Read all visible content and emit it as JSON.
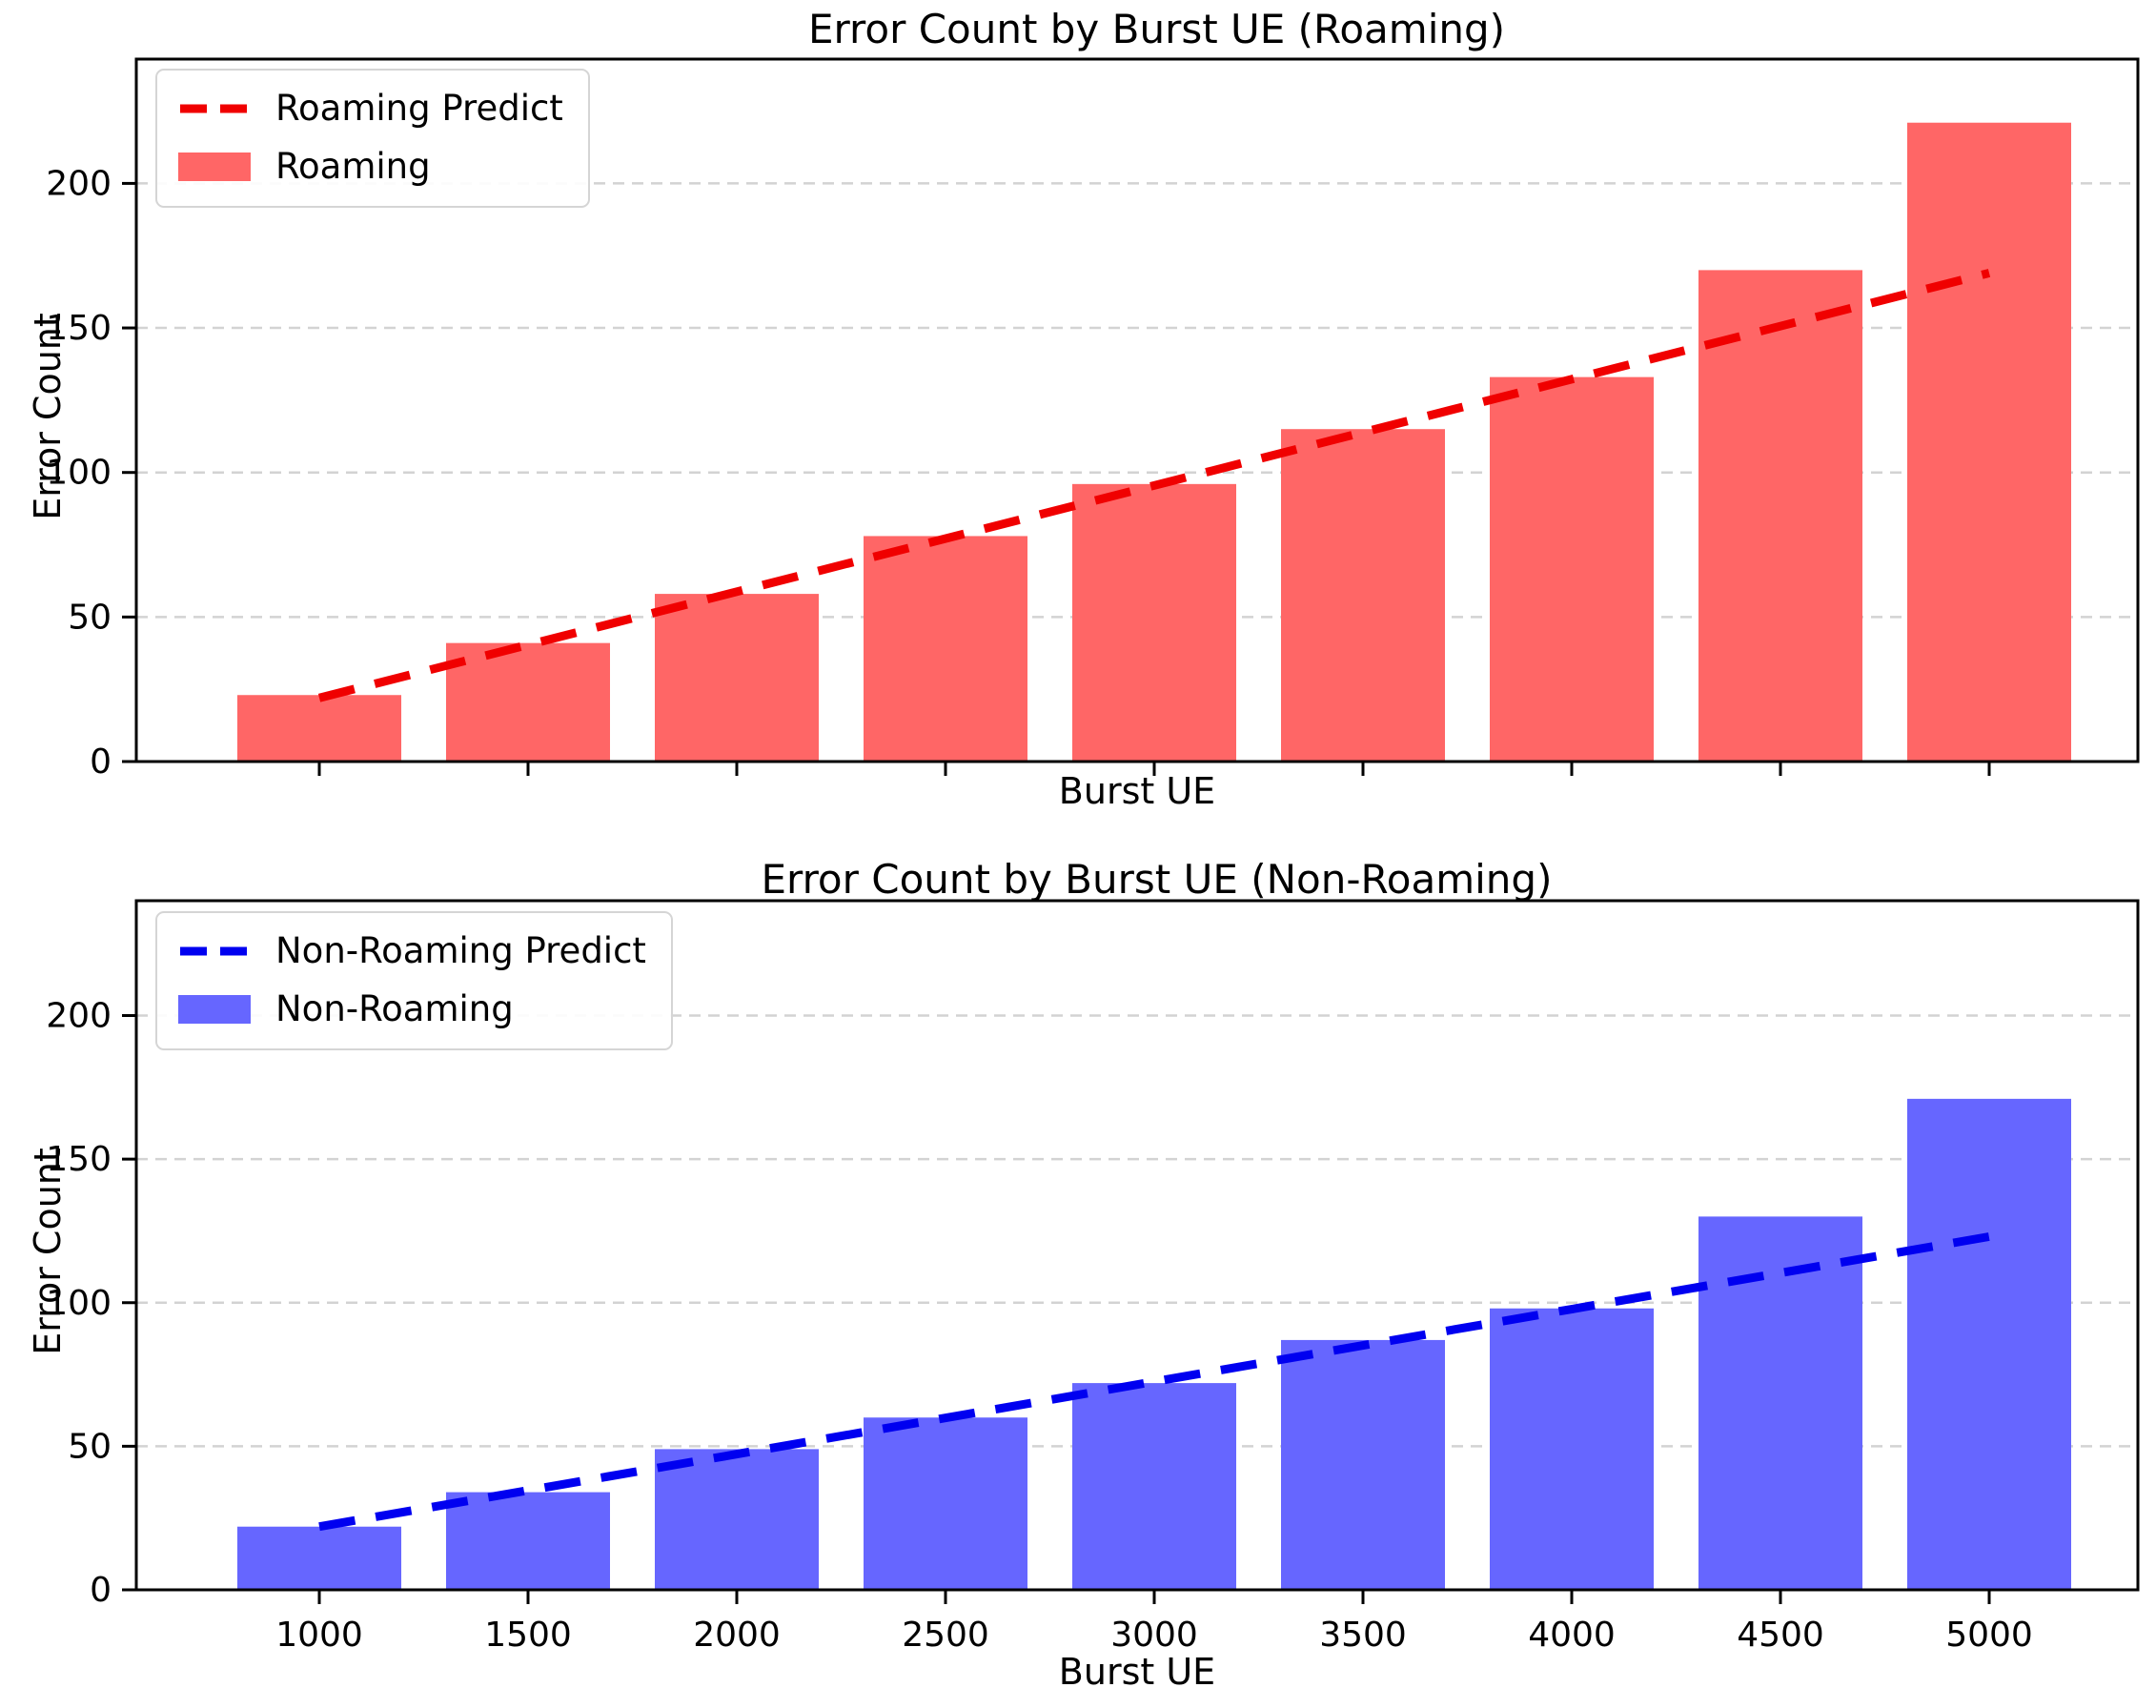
{
  "figure_background": "#ffffff",
  "colors": {
    "grid": "#d3d3d3",
    "axis": "#000000",
    "text": "#000000",
    "legend_border": "#d5d5d5"
  },
  "chart_data": [
    {
      "type": "bar",
      "title": "Error Count by Burst UE (Roaming)",
      "xlabel": "Burst UE",
      "ylabel": "Error Count",
      "categories": [
        1000,
        1500,
        2000,
        2500,
        3000,
        3500,
        4000,
        4500,
        5000
      ],
      "x_tick_labels_shown": false,
      "bar_series": {
        "name": "Roaming",
        "color": "#ff6666",
        "values": [
          23,
          41,
          58,
          78,
          96,
          115,
          133,
          170,
          221
        ]
      },
      "trend_series": {
        "name": "Roaming Predict",
        "color": "#f00000",
        "style": "dashed",
        "shape": "linear",
        "start_x": 1000,
        "end_x": 5000,
        "start_value": 22,
        "end_value": 169
      },
      "legend": {
        "position": "upper-left",
        "entries": [
          "Roaming Predict",
          "Roaming"
        ]
      },
      "yticks": [
        0,
        50,
        100,
        150,
        200
      ],
      "ylim": [
        0,
        243
      ],
      "grid": "horizontal-dashed"
    },
    {
      "type": "bar",
      "title": "Error Count by Burst UE (Non-Roaming)",
      "xlabel": "Burst UE",
      "ylabel": "Error Count",
      "categories": [
        1000,
        1500,
        2000,
        2500,
        3000,
        3500,
        4000,
        4500,
        5000
      ],
      "x_tick_labels_shown": true,
      "bar_series": {
        "name": "Non-Roaming",
        "color": "#6666ff",
        "values": [
          22,
          34,
          49,
          60,
          72,
          87,
          98,
          130,
          171
        ]
      },
      "trend_series": {
        "name": "Non-Roaming Predict",
        "color": "#0000f0",
        "style": "dashed",
        "shape": "linear",
        "start_x": 1000,
        "end_x": 5000,
        "start_value": 22,
        "end_value": 123
      },
      "legend": {
        "position": "upper-left",
        "entries": [
          "Non-Roaming Predict",
          "Non-Roaming"
        ]
      },
      "yticks": [
        0,
        50,
        100,
        150,
        200
      ],
      "ylim": [
        0,
        240
      ],
      "grid": "horizontal-dashed"
    }
  ]
}
